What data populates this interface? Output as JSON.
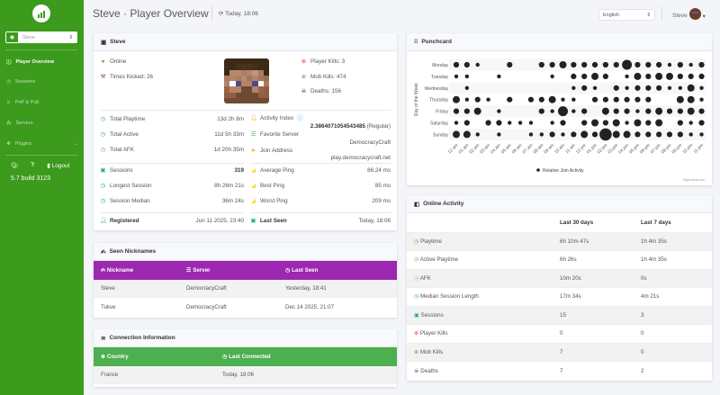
{
  "sidebar": {
    "player_select": "Steve",
    "items": [
      {
        "label": "Player Overview",
        "icon": "info-icon",
        "active": true
      },
      {
        "label": "Sessions",
        "icon": "clock-icon"
      },
      {
        "label": "PvP & PvE",
        "icon": "crosshair-icon"
      },
      {
        "label": "Servers",
        "icon": "network-icon"
      },
      {
        "label": "Plugins",
        "icon": "cubes-icon"
      }
    ],
    "logout": "Logout",
    "version": "5.7 build 3123"
  },
  "header": {
    "title": "Steve · Player Overview",
    "refresh": "Today, 18:06",
    "language": "English",
    "user": "Steve"
  },
  "player": {
    "title": "Steve",
    "online": "Online",
    "times_kicked": "Times Kicked: 26",
    "player_kills": "Player Kills: 3",
    "mob_kills": "Mob Kills: 474",
    "deaths": "Deaths: 156",
    "stats_left": [
      {
        "label": "Total Playtime",
        "value": "13d 2h 8m",
        "color": "#4caf50"
      },
      {
        "label": "Total Active",
        "value": "11d 5h 33m",
        "color": "#4caf50"
      },
      {
        "label": "Total AFK",
        "value": "1d 20h 35m",
        "color": "#999"
      }
    ],
    "activity_index_label": "Activity Index",
    "activity_index_value": "2.3864071054543485",
    "activity_index_group": "(Regular)",
    "favorite_server_label": "Favorite Server",
    "favorite_server": "DemocracyCraft",
    "join_address_label": "Join Address",
    "join_address": "play.democracycraft.net",
    "sessions": [
      {
        "label": "Sessions",
        "value": "319"
      },
      {
        "label": "Longest Session",
        "value": "8h 26m 21s"
      },
      {
        "label": "Session Median",
        "value": "36m 24s"
      }
    ],
    "pings": [
      {
        "label": "Average Ping",
        "value": "86.24 ms"
      },
      {
        "label": "Best Ping",
        "value": "85 ms"
      },
      {
        "label": "Worst Ping",
        "value": "209 ms"
      }
    ],
    "registered_label": "Registered",
    "registered": "Jun 11 2025, 23:40",
    "last_seen_label": "Last Seen",
    "last_seen": "Today, 18:06"
  },
  "nicknames": {
    "title": "Seen Nicknames",
    "headers": [
      "Nickname",
      "Server",
      "Last Seen"
    ],
    "header_color": "#9c27b0",
    "rows": [
      [
        "Steve",
        "DemocracyCraft",
        "Yesterday, 18:41"
      ],
      [
        "Tukve",
        "DemocracyCraft",
        "Dec 14 2025, 21:07"
      ]
    ]
  },
  "connection": {
    "title": "Connection Information",
    "headers": [
      "Country",
      "Last Connected"
    ],
    "header_color": "#4caf50",
    "rows": [
      [
        "France",
        "Today, 18:06"
      ]
    ]
  },
  "online_activity": {
    "title": "Online Activity",
    "headers": [
      "",
      "Last 30 days",
      "Last 7 days"
    ],
    "rows": [
      {
        "label": "Playtime",
        "d30": "6h 10m 47s",
        "d7": "1h 4m 35s",
        "icon": "clock-icon",
        "color": "#4caf50"
      },
      {
        "label": "Active Playtime",
        "d30": "6h 26s",
        "d7": "1h 4m 35s",
        "icon": "clock-icon",
        "color": "#4caf50"
      },
      {
        "label": "AFK",
        "d30": "10m 20s",
        "d7": "0s",
        "icon": "clock-icon",
        "color": "#aaa"
      },
      {
        "label": "Median Session Length",
        "d30": "17m 34s",
        "d7": "4m 21s",
        "icon": "clock-icon",
        "color": "#26a69a"
      },
      {
        "label": "Sessions",
        "d30": "15",
        "d7": "3",
        "icon": "calendar-icon",
        "color": "#26a69a"
      },
      {
        "label": "Player Kills",
        "d30": "0",
        "d7": "0",
        "icon": "crosshair-icon",
        "color": "#f44336"
      },
      {
        "label": "Mob Kills",
        "d30": "7",
        "d7": "0",
        "icon": "crosshair-icon",
        "color": "#4caf50"
      },
      {
        "label": "Deaths",
        "d30": "7",
        "d7": "2",
        "icon": "skull-icon",
        "color": "#333"
      }
    ]
  },
  "chart_data": {
    "type": "scatter",
    "title": "Punchcard",
    "ylabel": "Day of the Week",
    "legend": "Relative Join Activity",
    "legend_position": "bottom",
    "credit": "Highcharts.com",
    "days": [
      "Monday",
      "Tuesday",
      "Wednesday",
      "Thursday",
      "Friday",
      "Saturday",
      "Sunday"
    ],
    "hours": [
      "12 am",
      "01 am",
      "02 am",
      "03 am",
      "04 am",
      "05 am",
      "06 am",
      "07 am",
      "08 am",
      "09 am",
      "10 am",
      "11 am",
      "12 pm",
      "01 pm",
      "02 pm",
      "03 pm",
      "04 pm",
      "05 pm",
      "06 pm",
      "07 pm",
      "08 pm",
      "09 pm",
      "10 pm",
      "11 pm"
    ],
    "values": [
      [
        2,
        2,
        1,
        0,
        0,
        2,
        0,
        0,
        2,
        2,
        3,
        2,
        2,
        2,
        2,
        2,
        4,
        2,
        2,
        2,
        1,
        2,
        1,
        2
      ],
      [
        1,
        1,
        0,
        0,
        1,
        0,
        0,
        0,
        0,
        1,
        0,
        2,
        2,
        3,
        2,
        0,
        1,
        3,
        2,
        3,
        3,
        2,
        2,
        2
      ],
      [
        0,
        1,
        0,
        0,
        0,
        0,
        0,
        0,
        0,
        0,
        0,
        1,
        2,
        1,
        0,
        2,
        1,
        2,
        2,
        2,
        1,
        1,
        3,
        1
      ],
      [
        3,
        1,
        2,
        1,
        0,
        2,
        0,
        2,
        2,
        3,
        1,
        1,
        0,
        2,
        2,
        2,
        2,
        2,
        2,
        0,
        0,
        3,
        3,
        1
      ],
      [
        2,
        2,
        3,
        0,
        1,
        0,
        0,
        0,
        2,
        1,
        4,
        1,
        2,
        0,
        3,
        2,
        2,
        1,
        2,
        3,
        2,
        2,
        3,
        2
      ],
      [
        1,
        2,
        0,
        2,
        2,
        1,
        1,
        1,
        0,
        1,
        2,
        0,
        2,
        3,
        2,
        3,
        1,
        3,
        2,
        3,
        0,
        2,
        1,
        2
      ],
      [
        3,
        3,
        1,
        0,
        1,
        0,
        0,
        1,
        1,
        2,
        1,
        2,
        3,
        2,
        5,
        3,
        3,
        2,
        2,
        2,
        2,
        2,
        1,
        1
      ]
    ]
  }
}
